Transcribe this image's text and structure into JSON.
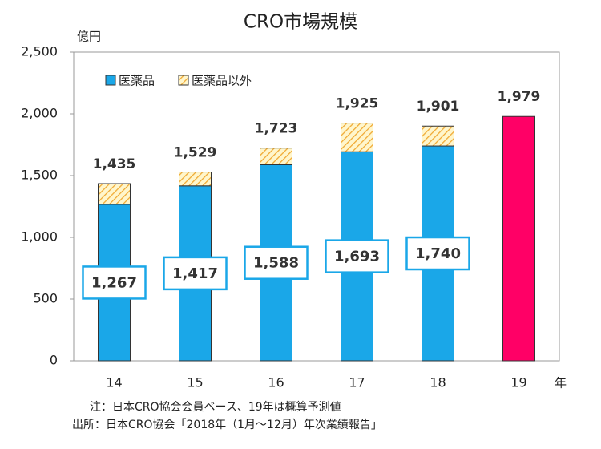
{
  "chart_data": {
    "type": "stacked-bar",
    "title": "CRO市場規模",
    "y_unit": "億円",
    "x_unit": "年",
    "categories": [
      "14",
      "15",
      "16",
      "17",
      "18",
      "19"
    ],
    "series": [
      {
        "name": "医薬品",
        "color": "#1aa7e8",
        "values": [
          1267,
          1417,
          1588,
          1693,
          1740,
          null
        ],
        "value_labels": [
          "1,267",
          "1,417",
          "1,588",
          "1,693",
          "1,740",
          null
        ]
      },
      {
        "name": "医薬品以外",
        "color": "#f0a830",
        "hatch": true,
        "values": [
          168,
          112,
          135,
          232,
          161,
          null
        ]
      },
      {
        "color": "#ff0066",
        "values": [
          null,
          null,
          null,
          null,
          null,
          1979
        ]
      }
    ],
    "totals": [
      1435,
      1529,
      1723,
      1925,
      1901,
      1979
    ],
    "total_labels": [
      "1,435",
      "1,529",
      "1,723",
      "1,925",
      "1,901",
      "1,979"
    ],
    "ylim": [
      0,
      2500
    ],
    "yticks": [
      0,
      500,
      {
        "value": 1000,
        "label": "1,000"
      },
      {
        "value": 1500,
        "label": "1,500"
      },
      {
        "value": 2000,
        "label": "2,000"
      },
      {
        "value": 2500,
        "label": "2,500"
      }
    ],
    "notes": [
      "注：日本CRO協会会員ベース、19年は概算予測値",
      "出所：日本CRO協会「2018年（1月～12月）年次業績報告」"
    ]
  }
}
